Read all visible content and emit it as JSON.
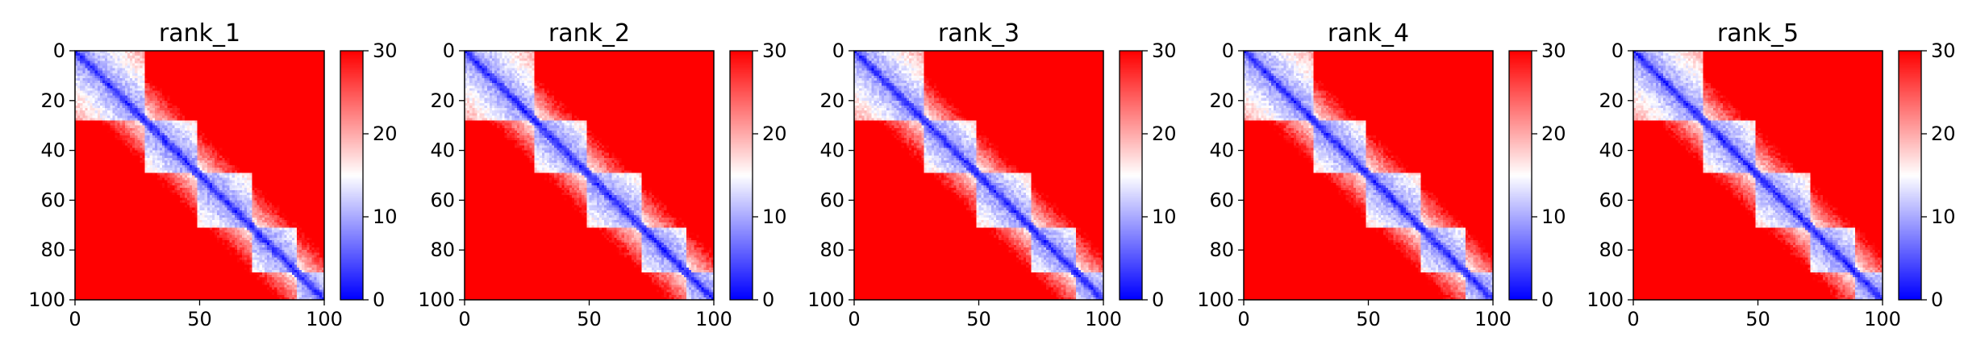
{
  "chart_data": [
    {
      "type": "heatmap",
      "title": "rank_1",
      "xlim": [
        0,
        100
      ],
      "ylim": [
        100,
        0
      ],
      "xticks": [
        0,
        50,
        100
      ],
      "yticks": [
        0,
        20,
        40,
        60,
        80,
        100
      ],
      "colorbar": {
        "range": [
          0,
          30
        ],
        "ticks": [
          0,
          10,
          20,
          30
        ]
      },
      "domains": [
        [
          0,
          27
        ],
        [
          27,
          48
        ],
        [
          48,
          70
        ],
        [
          70,
          88
        ],
        [
          88,
          100
        ]
      ],
      "band_half_width": 7
    },
    {
      "type": "heatmap",
      "title": "rank_2",
      "xlim": [
        0,
        100
      ],
      "ylim": [
        100,
        0
      ],
      "xticks": [
        0,
        50,
        100
      ],
      "yticks": [
        0,
        20,
        40,
        60,
        80,
        100
      ],
      "colorbar": {
        "range": [
          0,
          30
        ],
        "ticks": [
          0,
          10,
          20,
          30
        ]
      },
      "domains": [
        [
          0,
          27
        ],
        [
          27,
          48
        ],
        [
          48,
          70
        ],
        [
          70,
          88
        ],
        [
          88,
          100
        ]
      ],
      "band_half_width": 7
    },
    {
      "type": "heatmap",
      "title": "rank_3",
      "xlim": [
        0,
        100
      ],
      "ylim": [
        100,
        0
      ],
      "xticks": [
        0,
        50,
        100
      ],
      "yticks": [
        0,
        20,
        40,
        60,
        80,
        100
      ],
      "colorbar": {
        "range": [
          0,
          30
        ],
        "ticks": [
          0,
          10,
          20,
          30
        ]
      },
      "domains": [
        [
          0,
          27
        ],
        [
          27,
          48
        ],
        [
          48,
          70
        ],
        [
          70,
          88
        ],
        [
          88,
          100
        ]
      ],
      "band_half_width": 7
    },
    {
      "type": "heatmap",
      "title": "rank_4",
      "xlim": [
        0,
        100
      ],
      "ylim": [
        100,
        0
      ],
      "xticks": [
        0,
        50,
        100
      ],
      "yticks": [
        0,
        20,
        40,
        60,
        80,
        100
      ],
      "colorbar": {
        "range": [
          0,
          30
        ],
        "ticks": [
          0,
          10,
          20,
          30
        ]
      },
      "domains": [
        [
          0,
          27
        ],
        [
          27,
          48
        ],
        [
          48,
          70
        ],
        [
          70,
          88
        ],
        [
          88,
          100
        ]
      ],
      "band_half_width": 7
    },
    {
      "type": "heatmap",
      "title": "rank_5",
      "xlim": [
        0,
        100
      ],
      "ylim": [
        100,
        0
      ],
      "xticks": [
        0,
        50,
        100
      ],
      "yticks": [
        0,
        20,
        40,
        60,
        80,
        100
      ],
      "colorbar": {
        "range": [
          0,
          30
        ],
        "ticks": [
          0,
          10,
          20,
          30
        ]
      },
      "domains": [
        [
          0,
          27
        ],
        [
          27,
          48
        ],
        [
          48,
          70
        ],
        [
          70,
          88
        ],
        [
          88,
          100
        ]
      ],
      "band_half_width": 7
    }
  ],
  "colors": {
    "low": "#0000ff",
    "mid": "#ffffff",
    "high": "#ff0000"
  }
}
